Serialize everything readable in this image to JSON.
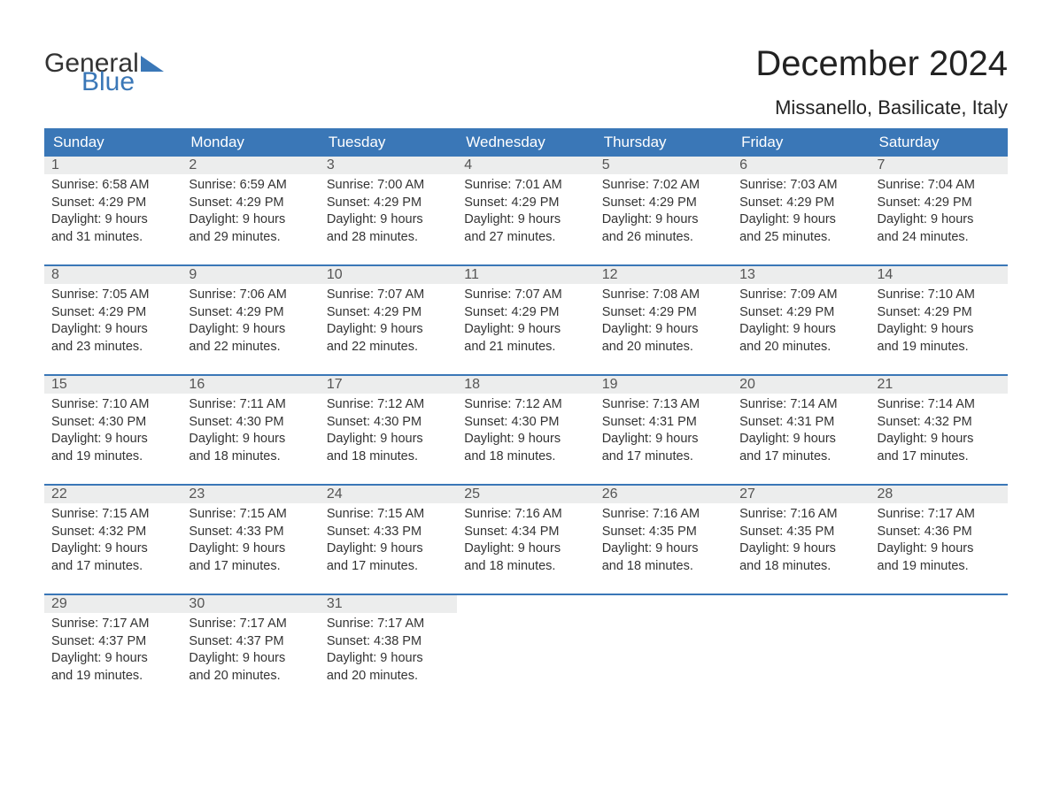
{
  "brand": {
    "line1": "General",
    "line2": "Blue",
    "accent_color": "#3a77b7"
  },
  "title": "December 2024",
  "location": "Missanello, Basilicate, Italy",
  "colors": {
    "header_bg": "#3a77b7",
    "header_text": "#ffffff",
    "daynum_bg": "#eceded",
    "text": "#333333",
    "week_border": "#3a77b7",
    "page_bg": "#ffffff"
  },
  "day_names": [
    "Sunday",
    "Monday",
    "Tuesday",
    "Wednesday",
    "Thursday",
    "Friday",
    "Saturday"
  ],
  "labels": {
    "sunrise": "Sunrise",
    "sunset": "Sunset",
    "daylight": "Daylight"
  },
  "weeks": [
    [
      {
        "n": "1",
        "sunrise": "6:58 AM",
        "sunset": "4:29 PM",
        "daylight": "9 hours and 31 minutes."
      },
      {
        "n": "2",
        "sunrise": "6:59 AM",
        "sunset": "4:29 PM",
        "daylight": "9 hours and 29 minutes."
      },
      {
        "n": "3",
        "sunrise": "7:00 AM",
        "sunset": "4:29 PM",
        "daylight": "9 hours and 28 minutes."
      },
      {
        "n": "4",
        "sunrise": "7:01 AM",
        "sunset": "4:29 PM",
        "daylight": "9 hours and 27 minutes."
      },
      {
        "n": "5",
        "sunrise": "7:02 AM",
        "sunset": "4:29 PM",
        "daylight": "9 hours and 26 minutes."
      },
      {
        "n": "6",
        "sunrise": "7:03 AM",
        "sunset": "4:29 PM",
        "daylight": "9 hours and 25 minutes."
      },
      {
        "n": "7",
        "sunrise": "7:04 AM",
        "sunset": "4:29 PM",
        "daylight": "9 hours and 24 minutes."
      }
    ],
    [
      {
        "n": "8",
        "sunrise": "7:05 AM",
        "sunset": "4:29 PM",
        "daylight": "9 hours and 23 minutes."
      },
      {
        "n": "9",
        "sunrise": "7:06 AM",
        "sunset": "4:29 PM",
        "daylight": "9 hours and 22 minutes."
      },
      {
        "n": "10",
        "sunrise": "7:07 AM",
        "sunset": "4:29 PM",
        "daylight": "9 hours and 22 minutes."
      },
      {
        "n": "11",
        "sunrise": "7:07 AM",
        "sunset": "4:29 PM",
        "daylight": "9 hours and 21 minutes."
      },
      {
        "n": "12",
        "sunrise": "7:08 AM",
        "sunset": "4:29 PM",
        "daylight": "9 hours and 20 minutes."
      },
      {
        "n": "13",
        "sunrise": "7:09 AM",
        "sunset": "4:29 PM",
        "daylight": "9 hours and 20 minutes."
      },
      {
        "n": "14",
        "sunrise": "7:10 AM",
        "sunset": "4:29 PM",
        "daylight": "9 hours and 19 minutes."
      }
    ],
    [
      {
        "n": "15",
        "sunrise": "7:10 AM",
        "sunset": "4:30 PM",
        "daylight": "9 hours and 19 minutes."
      },
      {
        "n": "16",
        "sunrise": "7:11 AM",
        "sunset": "4:30 PM",
        "daylight": "9 hours and 18 minutes."
      },
      {
        "n": "17",
        "sunrise": "7:12 AM",
        "sunset": "4:30 PM",
        "daylight": "9 hours and 18 minutes."
      },
      {
        "n": "18",
        "sunrise": "7:12 AM",
        "sunset": "4:30 PM",
        "daylight": "9 hours and 18 minutes."
      },
      {
        "n": "19",
        "sunrise": "7:13 AM",
        "sunset": "4:31 PM",
        "daylight": "9 hours and 17 minutes."
      },
      {
        "n": "20",
        "sunrise": "7:14 AM",
        "sunset": "4:31 PM",
        "daylight": "9 hours and 17 minutes."
      },
      {
        "n": "21",
        "sunrise": "7:14 AM",
        "sunset": "4:32 PM",
        "daylight": "9 hours and 17 minutes."
      }
    ],
    [
      {
        "n": "22",
        "sunrise": "7:15 AM",
        "sunset": "4:32 PM",
        "daylight": "9 hours and 17 minutes."
      },
      {
        "n": "23",
        "sunrise": "7:15 AM",
        "sunset": "4:33 PM",
        "daylight": "9 hours and 17 minutes."
      },
      {
        "n": "24",
        "sunrise": "7:15 AM",
        "sunset": "4:33 PM",
        "daylight": "9 hours and 17 minutes."
      },
      {
        "n": "25",
        "sunrise": "7:16 AM",
        "sunset": "4:34 PM",
        "daylight": "9 hours and 18 minutes."
      },
      {
        "n": "26",
        "sunrise": "7:16 AM",
        "sunset": "4:35 PM",
        "daylight": "9 hours and 18 minutes."
      },
      {
        "n": "27",
        "sunrise": "7:16 AM",
        "sunset": "4:35 PM",
        "daylight": "9 hours and 18 minutes."
      },
      {
        "n": "28",
        "sunrise": "7:17 AM",
        "sunset": "4:36 PM",
        "daylight": "9 hours and 19 minutes."
      }
    ],
    [
      {
        "n": "29",
        "sunrise": "7:17 AM",
        "sunset": "4:37 PM",
        "daylight": "9 hours and 19 minutes."
      },
      {
        "n": "30",
        "sunrise": "7:17 AM",
        "sunset": "4:37 PM",
        "daylight": "9 hours and 20 minutes."
      },
      {
        "n": "31",
        "sunrise": "7:17 AM",
        "sunset": "4:38 PM",
        "daylight": "9 hours and 20 minutes."
      },
      null,
      null,
      null,
      null
    ]
  ]
}
